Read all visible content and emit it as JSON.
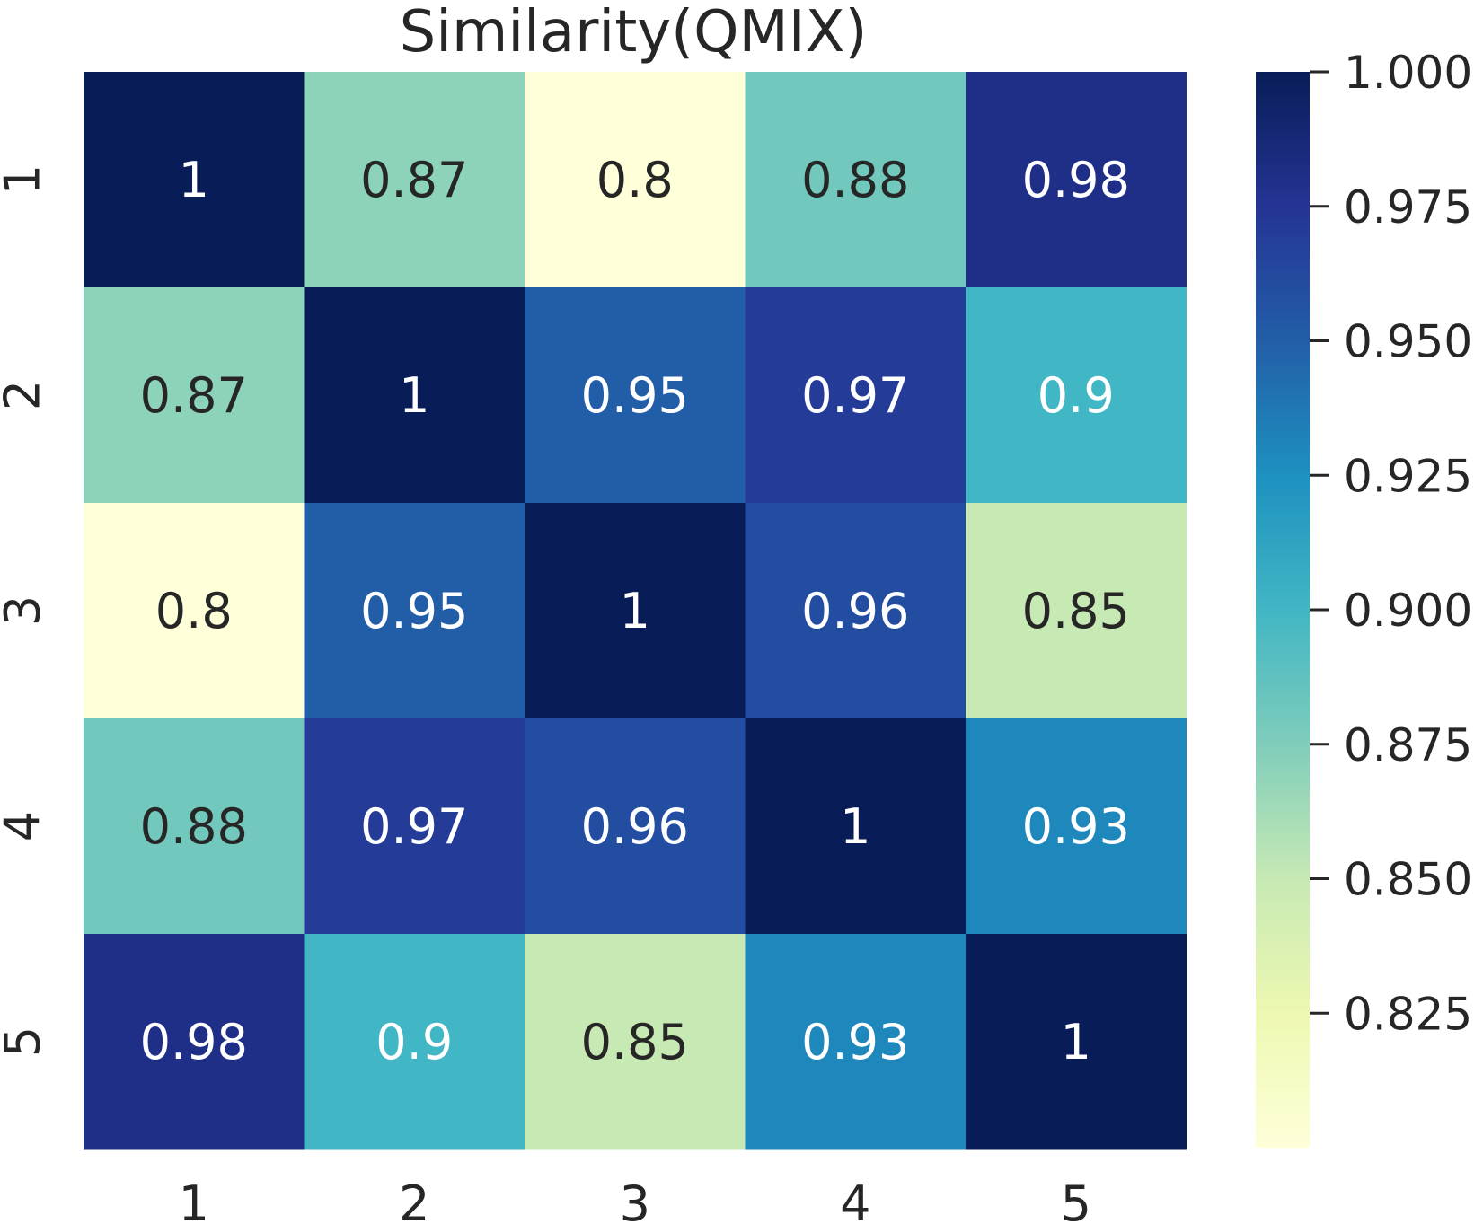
{
  "chart_data": {
    "type": "heatmap",
    "title": "Similarity(QMIX)",
    "x_categories": [
      "1",
      "2",
      "3",
      "4",
      "5"
    ],
    "y_categories": [
      "1",
      "2",
      "3",
      "4",
      "5"
    ],
    "values": [
      [
        1.0,
        0.87,
        0.8,
        0.88,
        0.98
      ],
      [
        0.87,
        1.0,
        0.95,
        0.97,
        0.9
      ],
      [
        0.8,
        0.95,
        1.0,
        0.96,
        0.85
      ],
      [
        0.88,
        0.97,
        0.96,
        1.0,
        0.93
      ],
      [
        0.98,
        0.9,
        0.85,
        0.93,
        1.0
      ]
    ],
    "annotations": [
      [
        "1",
        "0.87",
        "0.8",
        "0.88",
        "0.98"
      ],
      [
        "0.87",
        "1",
        "0.95",
        "0.97",
        "0.9"
      ],
      [
        "0.8",
        "0.95",
        "1",
        "0.96",
        "0.85"
      ],
      [
        "0.88",
        "0.97",
        "0.96",
        "1",
        "0.93"
      ],
      [
        "0.98",
        "0.9",
        "0.85",
        "0.93",
        "1"
      ]
    ],
    "colormap": "YlGnBu",
    "colorbar": {
      "range": [
        0.8,
        1.0
      ],
      "ticks": [
        0.825,
        0.85,
        0.875,
        0.9,
        0.925,
        0.95,
        0.975,
        1.0
      ],
      "tick_labels": [
        "0.825",
        "0.850",
        "0.875",
        "0.900",
        "0.925",
        "0.950",
        "0.975",
        "1.000"
      ]
    },
    "text_colors": {
      "dark": "#262626",
      "light": "#ffffff"
    }
  }
}
